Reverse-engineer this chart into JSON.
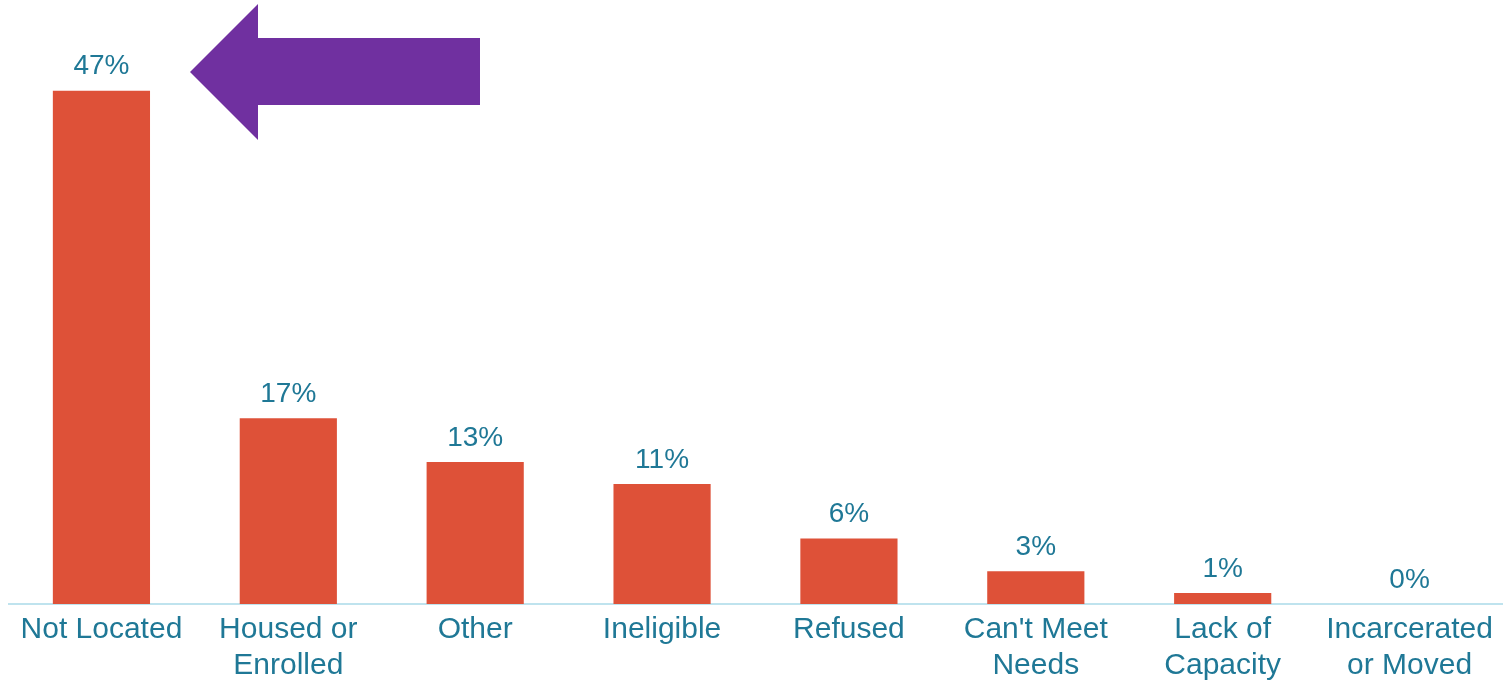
{
  "chart_data": {
    "type": "bar",
    "categories": [
      "Not Located",
      "Housed or Enrolled",
      "Other",
      "Ineligible",
      "Refused",
      "Can't Meet Needs",
      "Lack of Capacity",
      "Incarcerated or Moved"
    ],
    "values": [
      47,
      17,
      13,
      11,
      6,
      3,
      1,
      0
    ],
    "value_labels": [
      "47%",
      "17%",
      "13%",
      "11%",
      "6%",
      "3%",
      "1%",
      "0%"
    ],
    "color": "#de5138",
    "grid": false,
    "legend": false
  }
}
